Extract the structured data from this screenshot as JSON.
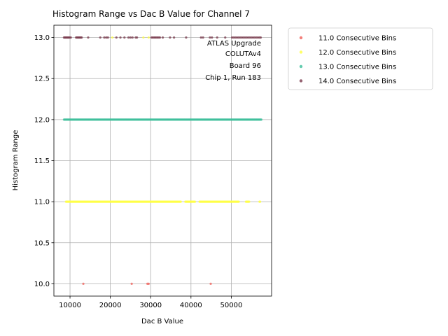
{
  "chart_data": {
    "type": "scatter",
    "title": "Histogram Range vs Dac B Value for Channel 7",
    "xlabel": "Dac B Value",
    "ylabel": "Histogram Range",
    "xlim": [
      6000,
      60000
    ],
    "ylim": [
      9.85,
      13.15
    ],
    "xticks": [
      10000,
      20000,
      30000,
      40000,
      50000
    ],
    "yticks": [
      10.0,
      10.5,
      11.0,
      11.5,
      12.0,
      12.5,
      13.0
    ],
    "xtick_labels": [
      "10000",
      "20000",
      "30000",
      "40000",
      "50000"
    ],
    "ytick_labels": [
      "10.0",
      "10.5",
      "11.0",
      "11.5",
      "12.0",
      "12.5",
      "13.0"
    ],
    "grid": true,
    "legend_position": "outside-right",
    "annotation": [
      "ATLAS Upgrade",
      "COLUTAv4",
      "Board 96",
      "Chip 1, Run 183"
    ],
    "series": [
      {
        "name": "11.0 Consecutive Bins",
        "color": "#f0605a",
        "y": 10.0,
        "x": [
          13300,
          25300,
          29200,
          29500,
          44900
        ]
      },
      {
        "name": "12.0 Consecutive Bins",
        "color": "#ffff44",
        "y_main": 11.0,
        "x_range_main": [
          9000,
          57200
        ],
        "x_extra_13": [
          20500,
          28200,
          29500
        ]
      },
      {
        "name": "13.0 Consecutive Bins",
        "color": "#3dbf9b",
        "y": 12.0,
        "x_range": [
          8500,
          57500
        ]
      },
      {
        "name": "14.0 Consecutive Bins",
        "color": "#7a3b4e",
        "y": 13.0,
        "x": [
          8500,
          8700,
          8900,
          9100,
          9300,
          9500,
          9700,
          9900,
          10200,
          11500,
          11700,
          11900,
          12100,
          12300,
          12500,
          12700,
          12900,
          14500,
          17500,
          18500,
          19000,
          19400,
          21500,
          22500,
          23500,
          24500,
          25000,
          25500,
          26300,
          26600,
          30200,
          30500,
          30800,
          31100,
          31400,
          31700,
          32000,
          32300,
          33000,
          34800,
          35800,
          38800,
          42500,
          43000,
          44700,
          45200,
          46500,
          48500,
          50200,
          50600,
          51000,
          51400,
          51800,
          52200,
          52600,
          53000,
          53400,
          53800,
          54200,
          54600,
          55000,
          55400,
          55800,
          56200,
          56600,
          57000,
          57300
        ]
      }
    ]
  }
}
